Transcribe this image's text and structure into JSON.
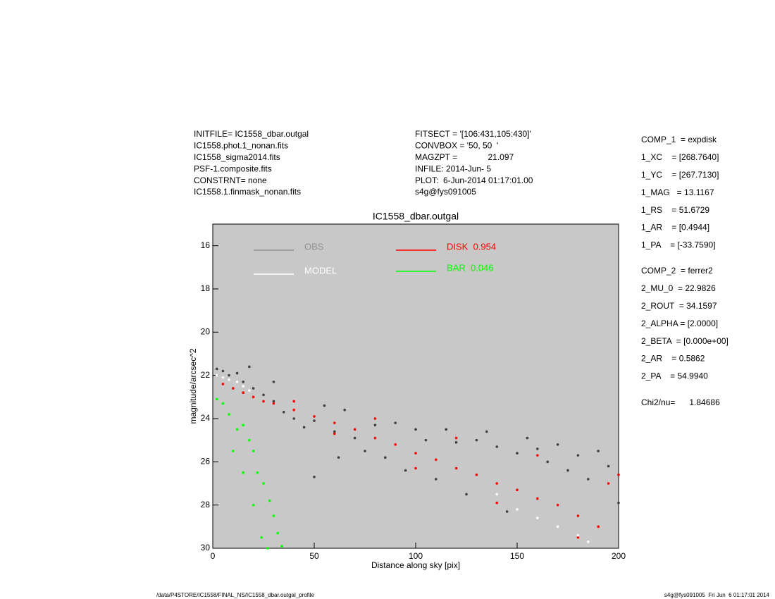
{
  "header": {
    "left": [
      "INITFILE= IC1558_dbar.outgal",
      "IC1558.phot.1_nonan.fits",
      "IC1558_sigma2014.fits",
      "PSF-1.composite.fits",
      "CONSTRNT= none",
      "IC1558.1.finmask_nonan.fits"
    ],
    "middle": [
      "FITSECT = '[106:431,105:430]'",
      "CONVBOX = '50, 50  '",
      "MAGZPT =             21.097",
      "INFILE: 2014-Jun- 5",
      "PLOT:  6-Jun-2014 01:17:01.00",
      "s4g@fys091005"
    ]
  },
  "params": {
    "comp1": [
      "COMP_1  = expdisk",
      "1_XC    = [268.7640]",
      "1_YC    = [267.7130]",
      "1_MAG   = 13.1167",
      "1_RS    = 51.6729",
      "1_AR    = [0.4944]",
      "1_PA    = [-33.7590]"
    ],
    "comp2": [
      "COMP_2  = ferrer2",
      "2_MU_0  = 22.9826",
      "2_ROUT  = 34.1597",
      "2_ALPHA = [2.0000]",
      "2_BETA  = [0.000e+00]",
      "2_AR    = 0.5862",
      "2_PA    = 54.9940"
    ],
    "chi": "Chi2/nu=      1.84686"
  },
  "footer": {
    "left": "/data/P4STORE/IC1558/FINAL_NS/IC1558_dbar.outgal_profile",
    "right": "s4g@fys091005  Fri Jun  6 01:17:01 2014"
  },
  "chart_data": {
    "type": "scatter",
    "title": "IC1558_dbar.outgal",
    "x_label": "Distance along sky [pix]",
    "y_label": "magnitude/arcsec^2",
    "xlim": [
      0,
      200
    ],
    "xticks": [
      0,
      50,
      100,
      150,
      200
    ],
    "ylim": [
      15,
      30
    ],
    "yticks": [
      16,
      18,
      20,
      22,
      24,
      26,
      28,
      30
    ],
    "y_inverted": true,
    "background": "#c8c8c8",
    "series": [
      {
        "name": "OBS",
        "color": "#404040",
        "legend_color": "#909090",
        "x": [
          2,
          5,
          8,
          12,
          15,
          20,
          25,
          30,
          35,
          40,
          45,
          50,
          55,
          60,
          65,
          70,
          75,
          80,
          85,
          90,
          95,
          100,
          105,
          110,
          115,
          120,
          125,
          130,
          135,
          140,
          145,
          150,
          155,
          160,
          165,
          170,
          175,
          180,
          185,
          190,
          195,
          200,
          50,
          62,
          30,
          18
        ],
        "y": [
          21.7,
          21.8,
          22,
          21.9,
          22.3,
          22.6,
          22.9,
          23.2,
          23.7,
          24,
          24.4,
          24.1,
          23.4,
          24.6,
          23.6,
          24.9,
          25.5,
          24.3,
          25.8,
          24.2,
          26.4,
          24.5,
          25,
          26.8,
          24.5,
          25.1,
          27.5,
          25,
          24.6,
          25.3,
          28.3,
          25.6,
          24.9,
          25.4,
          26,
          25.2,
          26.4,
          25.7,
          26.8,
          25.5,
          26.2,
          27.9,
          26.7,
          25.8,
          22.3,
          21.6
        ]
      },
      {
        "name": "DISK  0.954",
        "color": "#ff0000",
        "x": [
          5,
          10,
          15,
          20,
          25,
          30,
          40,
          50,
          60,
          70,
          80,
          90,
          100,
          110,
          120,
          130,
          140,
          150,
          160,
          170,
          180,
          190,
          195,
          40,
          60,
          80,
          100,
          120,
          140,
          160,
          180,
          200
        ],
        "y": [
          22.4,
          22.6,
          22.8,
          23,
          23.2,
          23.3,
          23.6,
          23.9,
          24.2,
          24.5,
          24.9,
          25.2,
          25.6,
          25.9,
          26.3,
          26.6,
          27,
          27.3,
          27.7,
          28,
          28.5,
          29,
          27,
          23.2,
          24.7,
          24,
          26.3,
          24.9,
          27.9,
          25.7,
          29.5,
          26.6
        ]
      },
      {
        "name": "MODEL",
        "color": "#ffffff",
        "x": [
          2,
          5,
          8,
          12,
          15,
          18,
          140,
          150,
          160,
          170,
          180,
          185
        ],
        "y": [
          22,
          22.1,
          22.2,
          22.3,
          22.5,
          22.7,
          27.5,
          28.2,
          28.6,
          29,
          29.4,
          29.7
        ]
      },
      {
        "name": "BAR  0.046",
        "color": "#00ff00",
        "x": [
          2,
          5,
          8,
          12,
          15,
          18,
          20,
          22,
          25,
          28,
          30,
          32,
          34,
          10,
          15,
          20,
          24,
          27
        ],
        "y": [
          23.1,
          23.3,
          23.8,
          24.5,
          24.3,
          25,
          25.5,
          26.5,
          27,
          27.8,
          28.5,
          29.3,
          29.9,
          25.5,
          26.5,
          28,
          29.5,
          30
        ]
      }
    ]
  }
}
